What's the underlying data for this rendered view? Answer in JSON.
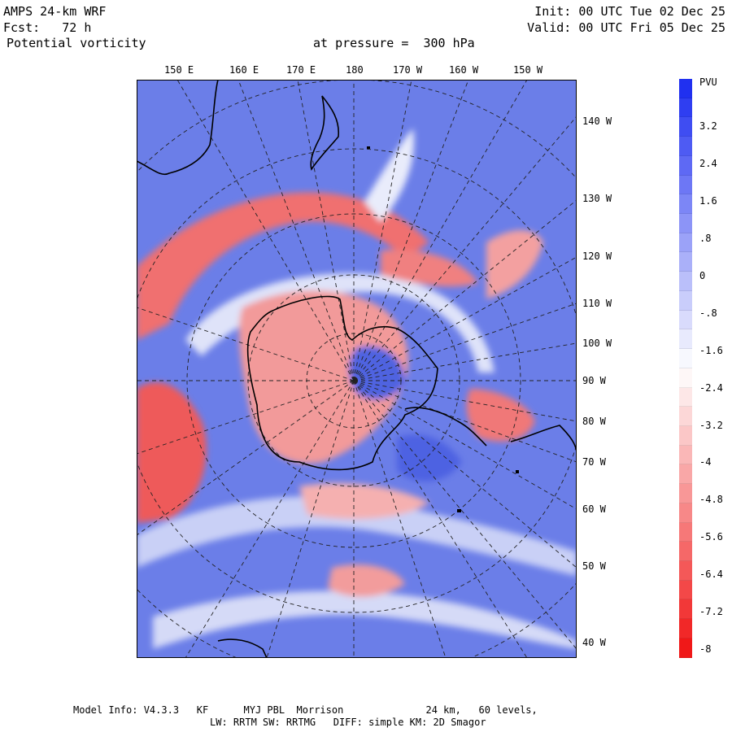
{
  "header": {
    "model": "AMPS 24-km WRF",
    "forecast": "Fcst:   72 h",
    "field": "Potential vorticity",
    "level": "at pressure =  300 hPa",
    "init": "Init: 00 UTC Tue 02 Dec 25",
    "valid": "Valid: 00 UTC Fri 05 Dec 25"
  },
  "map": {
    "top_longitude_labels": [
      "150 E",
      "160 E",
      "170 E",
      "180",
      "170 W",
      "160 W",
      "150 W"
    ],
    "right_longitude_labels": [
      "140 W",
      "130 W",
      "120 W",
      "110 W",
      "100 W",
      "90 W",
      "80 W",
      "70 W",
      "60 W",
      "50 W",
      "40 W"
    ]
  },
  "colorbar": {
    "unit": "PVU",
    "tick_labels": [
      "3.2",
      "2.4",
      "1.6",
      ".8",
      "0",
      "-.8",
      "-1.6",
      "-2.4",
      "-3.2",
      "-4",
      "-4.8",
      "-5.6",
      "-6.4",
      "-7.2",
      "-8"
    ],
    "min": -8,
    "max": 4,
    "colors": {
      "high": "#2030f0",
      "mid": "#ffffff",
      "low": "#f01818"
    }
  },
  "footer": {
    "line1": "Model Info: V4.3.3   KF      MYJ PBL  Morrison              24 km,   60 levels,",
    "line2": "LW: RRTM SW: RRTMG   DIFF: simple KM: 2D Smagor"
  }
}
